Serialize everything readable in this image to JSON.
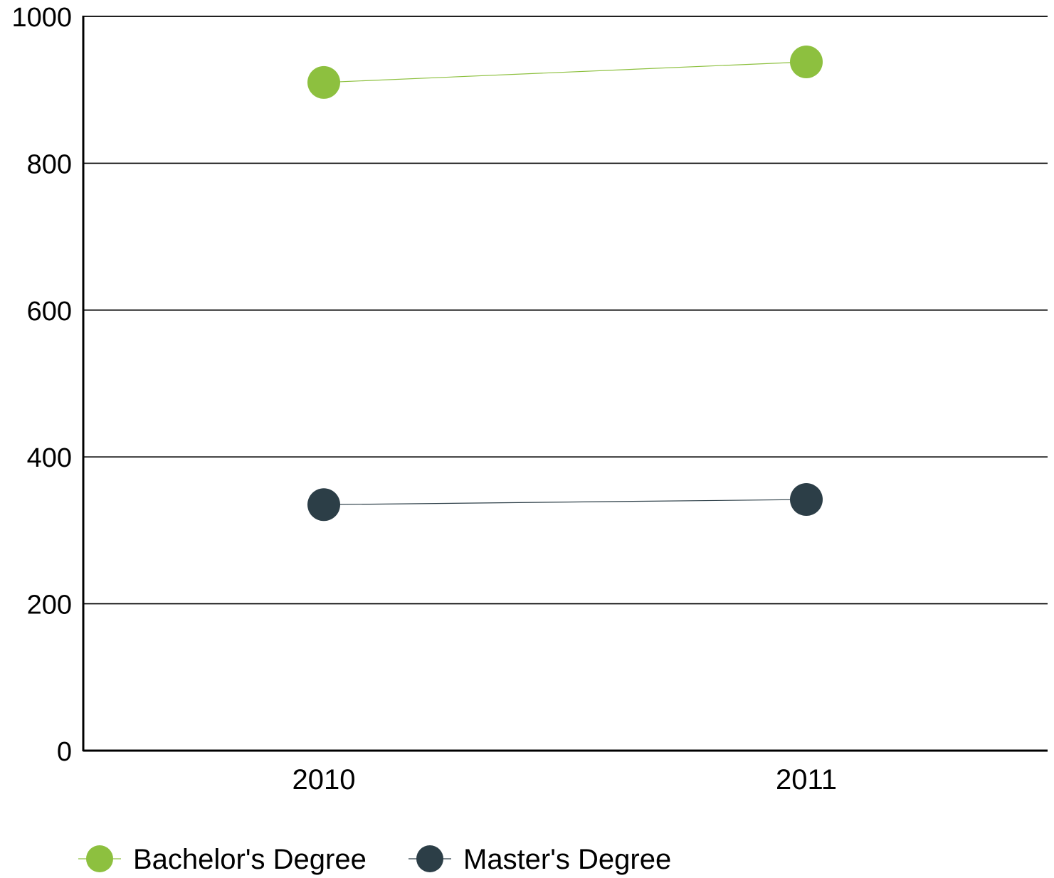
{
  "chart_data": {
    "type": "line",
    "title": "",
    "xlabel": "",
    "ylabel": "",
    "categories": [
      "2010",
      "2011"
    ],
    "ylim": [
      0,
      1000
    ],
    "yticks": [
      0,
      200,
      400,
      600,
      800,
      1000
    ],
    "grid": true,
    "legend_position": "bottom-left",
    "series": [
      {
        "name": "Bachelor's Degree",
        "color": "#8dc03f",
        "values": [
          910,
          938
        ]
      },
      {
        "name": "Master's Degree",
        "color": "#2c3e47",
        "values": [
          335,
          342
        ]
      }
    ]
  }
}
